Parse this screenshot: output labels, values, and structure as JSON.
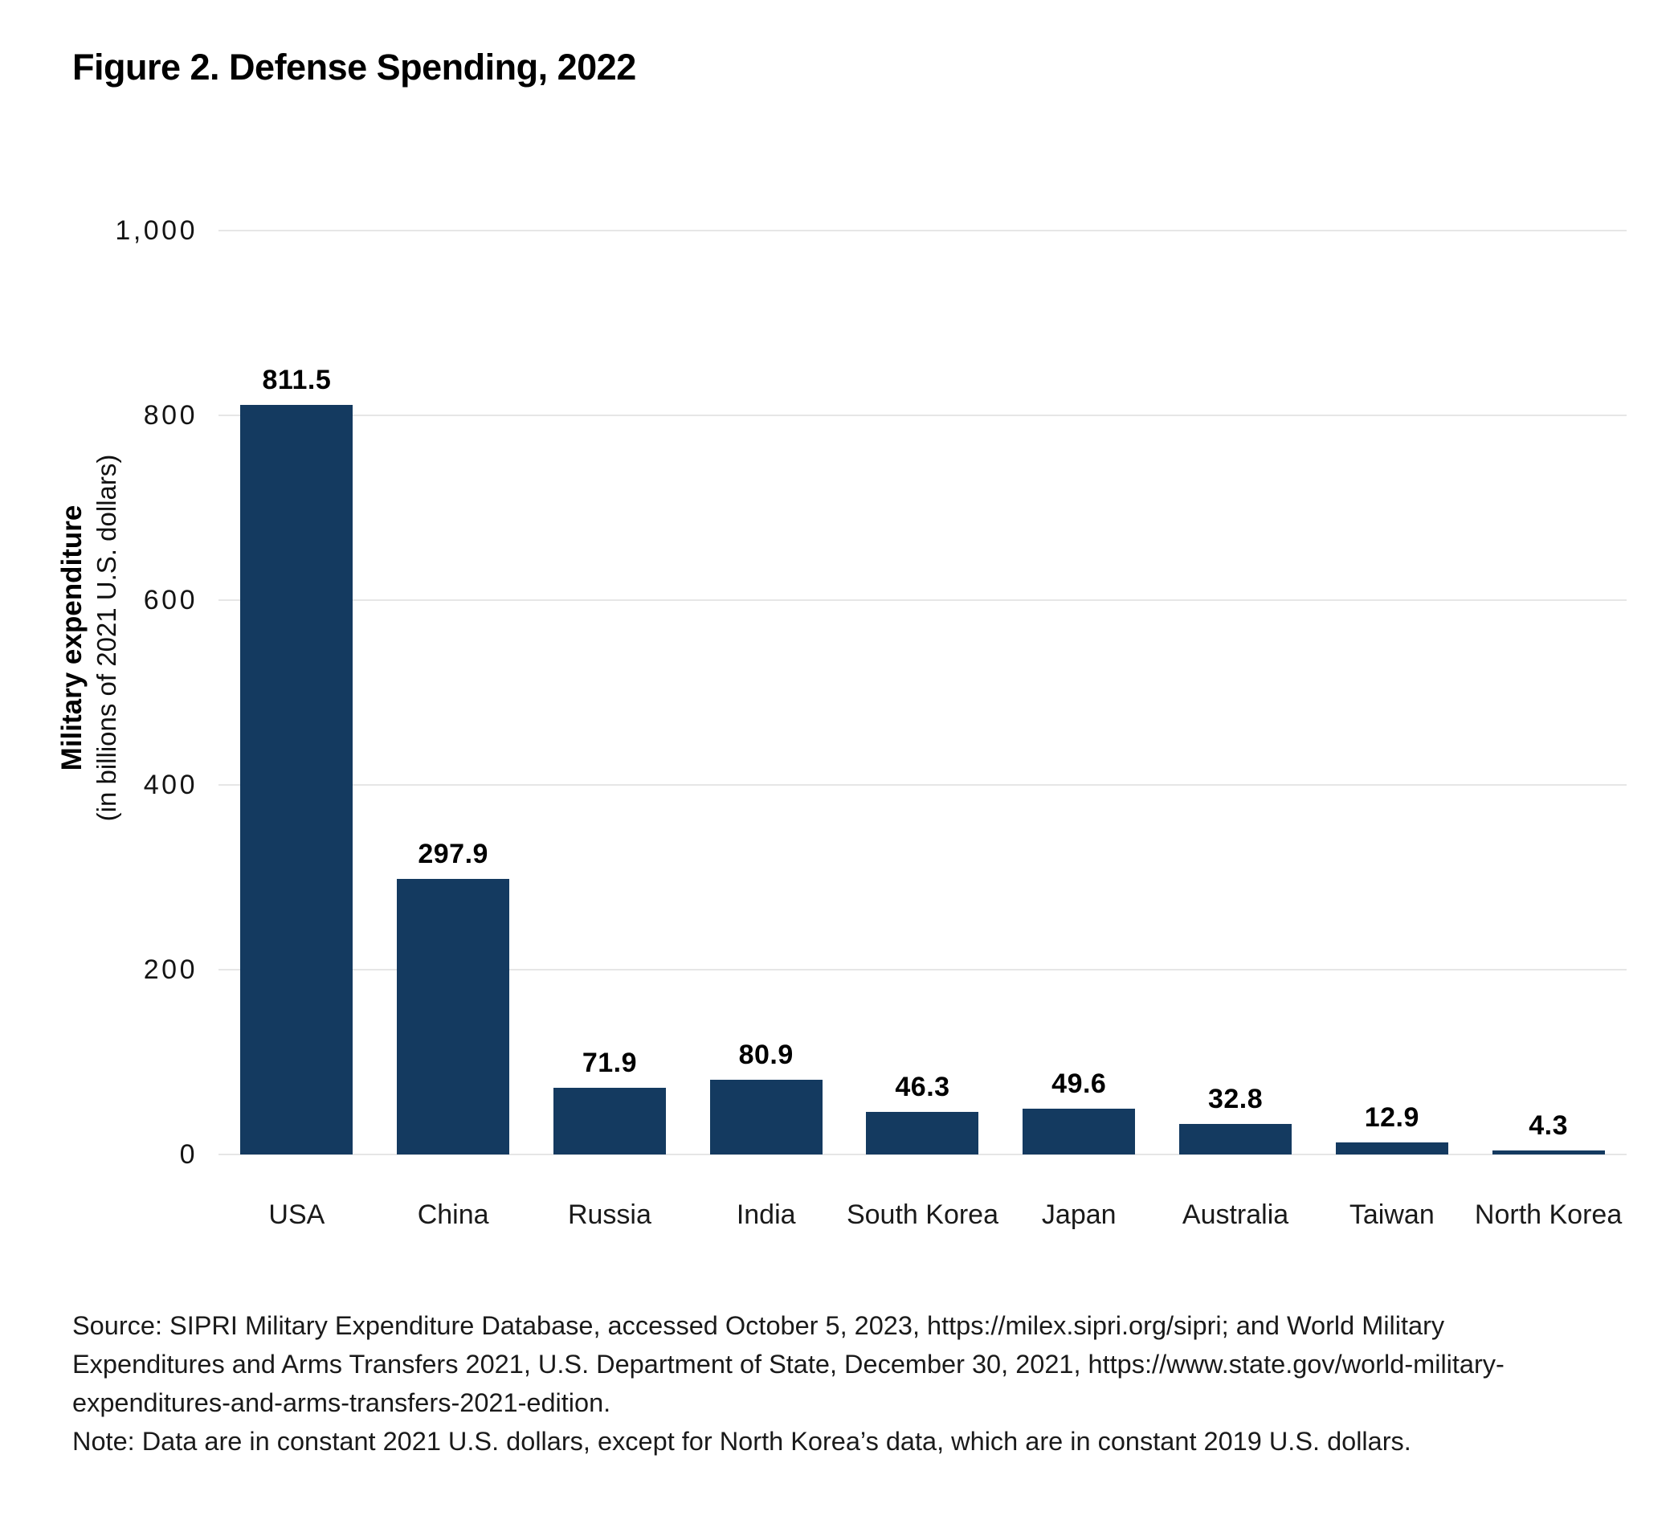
{
  "figure": {
    "title": "Figure 2. Defense Spending, 2022",
    "source_lines": [
      "Source: SIPRI Military Expenditure Database, accessed October 5, 2023, https://milex.sipri.org/sipri; and World Military",
      "Expenditures and Arms Transfers 2021, U.S. Department of State, December 30, 2021, https://www.state.gov/world-military-",
      "expenditures-and-arms-transfers-2021-edition.",
      "Note: Data are in constant 2021 U.S. dollars, except for North Korea’s data, which are in constant 2019 U.S. dollars."
    ]
  },
  "chart_data": {
    "type": "bar",
    "title": "Figure 2. Defense Spending, 2022",
    "categories": [
      "USA",
      "China",
      "Russia",
      "India",
      "South Korea",
      "Japan",
      "Australia",
      "Taiwan",
      "North Korea"
    ],
    "values": [
      811.5,
      297.9,
      71.9,
      80.9,
      46.3,
      49.6,
      32.8,
      12.9,
      4.3
    ],
    "value_labels": [
      "811.5",
      "297.9",
      "71.9",
      "80.9",
      "46.3",
      "49.6",
      "32.8",
      "12.9",
      "4.3"
    ],
    "ylabel": "Military expenditure",
    "ylabel_sub": "(in billions of 2021 U.S. dollars)",
    "xlabel": "",
    "ylim": [
      0,
      1000
    ],
    "yticks": [
      0,
      200,
      400,
      600,
      800,
      1000
    ],
    "ytick_labels": [
      "0",
      "200",
      "400",
      "600",
      "800",
      "1,000"
    ],
    "grid": true,
    "legend": "none",
    "bar_color": "#143a60",
    "grid_color": "#e6e6e6",
    "text_color": "#000000"
  }
}
